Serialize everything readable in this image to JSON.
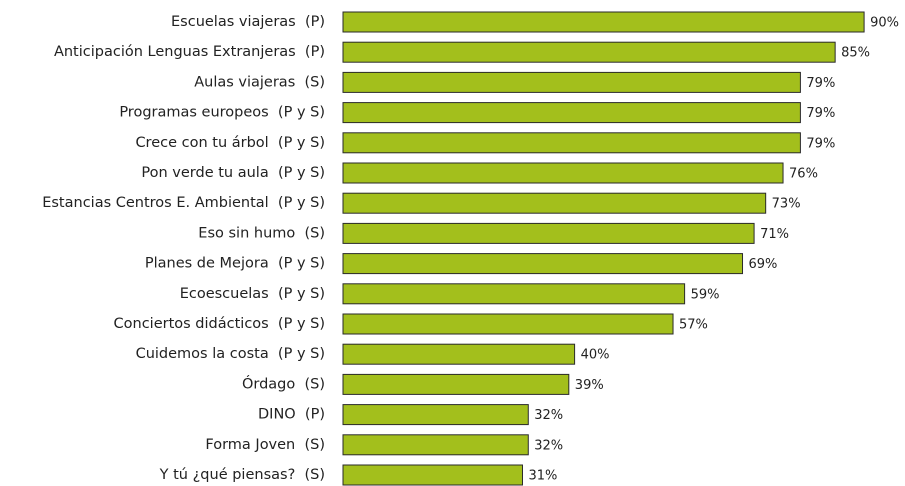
{
  "chart_data": {
    "type": "bar",
    "orientation": "horizontal",
    "categories": [
      "Escuelas viajeras  (P)",
      "Anticipación Lenguas Extranjeras  (P)",
      "Aulas viajeras  (S)",
      "Programas europeos  (P y S)",
      "Crece con tu árbol  (P y S)",
      "Pon verde tu aula  (P y S)",
      "Estancias Centros E. Ambiental  (P y S)",
      "Eso sin humo  (S)",
      "Planes de Mejora  (P y S)",
      "Ecoescuelas  (P y S)",
      "Conciertos didácticos  (P y S)",
      "Cuidemos la costa  (P y S)",
      "Órdago  (S)",
      "DINO  (P)",
      "Forma Joven  (S)",
      "Y tú ¿qué piensas?  (S)"
    ],
    "values": [
      90,
      85,
      79,
      79,
      79,
      76,
      73,
      71,
      69,
      59,
      57,
      40,
      39,
      32,
      32,
      31
    ],
    "value_labels": [
      "90%",
      "85%",
      "79%",
      "79%",
      "79%",
      "76%",
      "73%",
      "71%",
      "69%",
      "59%",
      "57%",
      "40%",
      "39%",
      "32%",
      "32%",
      "31%"
    ],
    "color": "#a3bf1c",
    "xlim": [
      0,
      100
    ]
  }
}
